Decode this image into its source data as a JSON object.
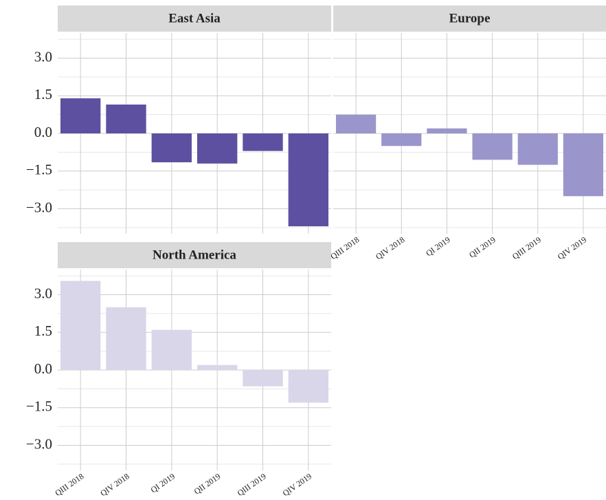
{
  "chart_data": [
    {
      "type": "bar",
      "title": "East Asia",
      "values": [
        1.4,
        1.15,
        -1.15,
        -1.2,
        -0.7,
        -3.7
      ],
      "color": "#5e50a1",
      "ylim": [
        -4,
        4
      ],
      "yticks": [
        {
          "value": -3,
          "label": "−3.0"
        },
        {
          "value": -1.5,
          "label": "−1.5"
        },
        {
          "value": 0,
          "label": "0.0"
        },
        {
          "value": 1.5,
          "label": "1.5"
        },
        {
          "value": 3,
          "label": "3.0"
        }
      ],
      "minor_yticks": [
        -3.75,
        -2.25,
        -0.75,
        0.75,
        2.25,
        3.75
      ],
      "grid": true
    },
    {
      "type": "bar",
      "title": "Europe",
      "categories": [
        "QIII 2018",
        "QIV 2018",
        "QI 2019",
        "QII 2019",
        "QIII 2019",
        "QIV 2019"
      ],
      "values": [
        0.75,
        -0.5,
        0.2,
        -1.05,
        -1.25,
        -2.5
      ],
      "color": "#9a95cb",
      "ylim": [
        -4,
        4
      ],
      "yticks": [
        -3,
        -1.5,
        0,
        1.5,
        3
      ],
      "minor_yticks": [
        -3.75,
        -2.25,
        -0.75,
        0.75,
        2.25,
        3.75
      ],
      "grid": true
    },
    {
      "type": "bar",
      "title": "North America",
      "categories": [
        "QIII 2018",
        "QIV 2018",
        "QI 2019",
        "QII 2019",
        "QIII 2019",
        "QIV 2019"
      ],
      "values": [
        3.55,
        2.5,
        1.6,
        0.2,
        -0.65,
        -1.3
      ],
      "color": "#d9d6ea",
      "ylim": [
        -4,
        4
      ],
      "yticks": [
        {
          "value": -3,
          "label": "−3.0"
        },
        {
          "value": -1.5,
          "label": "−1.5"
        },
        {
          "value": 0,
          "label": "0.0"
        },
        {
          "value": 1.5,
          "label": "1.5"
        },
        {
          "value": 3,
          "label": "3.0"
        }
      ],
      "minor_yticks": [
        -3.75,
        -2.25,
        -0.75,
        0.75,
        2.25,
        3.75
      ],
      "grid": true
    }
  ]
}
